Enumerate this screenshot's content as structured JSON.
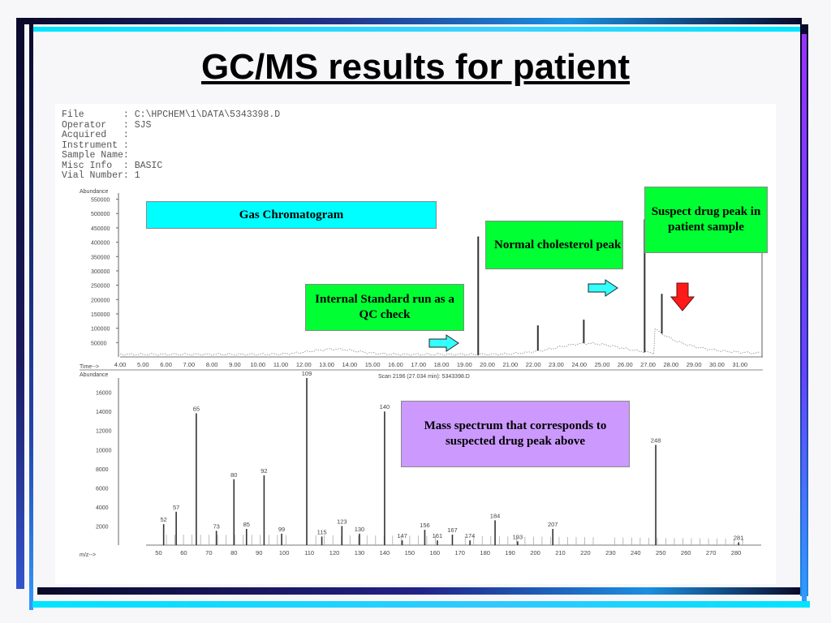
{
  "slide": {
    "title": "GC/MS results for patient"
  },
  "header": {
    "rows": [
      {
        "key": "File",
        "value": ": C:\\HPCHEM\\1\\DATA\\5343398.D"
      },
      {
        "key": "Operator",
        "value": ": SJS"
      },
      {
        "key": "Acquired",
        "value": ":"
      },
      {
        "key": "Instrument",
        "value": ":"
      },
      {
        "key": "Sample Name",
        "value": ":"
      },
      {
        "key": "Misc Info",
        "value": ": BASIC"
      },
      {
        "key": "Vial Number",
        "value": ": 1"
      }
    ]
  },
  "callouts": {
    "gas_chromatogram": "Gas Chromatogram",
    "internal_standard": "Internal Standard run as a QC check",
    "cholesterol": "Normal cholesterol peak",
    "suspect_drug": "Suspect drug peak in patient sample",
    "mass_spectrum": "Mass spectrum that corresponds to suspected drug peak above"
  },
  "colors": {
    "cyan": "#00ffff",
    "green": "#00ff33",
    "lavender": "#cc99ff",
    "arrow_cyan": "#33ffff",
    "arrow_red": "#ff1a1a"
  },
  "chart_data": [
    {
      "type": "line",
      "ylabel": "Abundance",
      "xlabel": "Time-->",
      "y_ticks": [
        "550000",
        "500000",
        "450000",
        "400000",
        "350000",
        "300000",
        "250000",
        "200000",
        "150000",
        "100000",
        "50000"
      ],
      "x_ticks": [
        "4.00",
        "5.00",
        "6.00",
        "7.00",
        "8.00",
        "9.00",
        "10.00",
        "11.00",
        "12.00",
        "13.00",
        "14.00",
        "15.00",
        "16.00",
        "17.00",
        "18.00",
        "19.00",
        "20.00",
        "21.00",
        "22.00",
        "23.00",
        "24.00",
        "25.00",
        "26.00",
        "27.00",
        "28.00",
        "29.00",
        "30.00",
        "31.00"
      ],
      "xlim": [
        4,
        32
      ],
      "ylim": [
        0,
        560000
      ],
      "peaks": [
        {
          "x": 19.6,
          "y": 420000
        },
        {
          "x": 22.2,
          "y": 110000
        },
        {
          "x": 24.2,
          "y": 130000
        },
        {
          "x": 26.85,
          "y": 480000
        },
        {
          "x": 27.6,
          "y": 220000
        }
      ]
    },
    {
      "type": "bar",
      "ylabel": "Abundance",
      "xlabel": "m/z-->",
      "subtitle": "Scan 2196 (27.034 min): 5343398.D",
      "y_ticks": [
        "16000",
        "14000",
        "12000",
        "10000",
        "8000",
        "6000",
        "4000",
        "2000"
      ],
      "x_ticks": [
        "50",
        "60",
        "70",
        "80",
        "90",
        "100",
        "110",
        "120",
        "130",
        "140",
        "150",
        "160",
        "170",
        "180",
        "190",
        "200",
        "210",
        "220",
        "230",
        "240",
        "250",
        "260",
        "270",
        "280"
      ],
      "xlim": [
        45,
        290
      ],
      "ylim": [
        0,
        17500
      ],
      "peaks": [
        {
          "mz": 52,
          "value": 2200,
          "label": "52"
        },
        {
          "mz": 57,
          "value": 3500,
          "label": "57"
        },
        {
          "mz": 65,
          "value": 13800,
          "label": "65"
        },
        {
          "mz": 73,
          "value": 1500,
          "label": "73"
        },
        {
          "mz": 80,
          "value": 6900,
          "label": "80"
        },
        {
          "mz": 85,
          "value": 1700,
          "label": "85"
        },
        {
          "mz": 92,
          "value": 7300,
          "label": "92"
        },
        {
          "mz": 99,
          "value": 1200,
          "label": "99"
        },
        {
          "mz": 109,
          "value": 17500,
          "label": "109"
        },
        {
          "mz": 115,
          "value": 900,
          "label": "115"
        },
        {
          "mz": 123,
          "value": 2000,
          "label": "123"
        },
        {
          "mz": 130,
          "value": 1200,
          "label": "130"
        },
        {
          "mz": 140,
          "value": 14000,
          "label": "140"
        },
        {
          "mz": 147,
          "value": 500,
          "label": "147"
        },
        {
          "mz": 156,
          "value": 1600,
          "label": "156"
        },
        {
          "mz": 161,
          "value": 500,
          "label": "161"
        },
        {
          "mz": 167,
          "value": 1100,
          "label": "167"
        },
        {
          "mz": 174,
          "value": 500,
          "label": "174"
        },
        {
          "mz": 184,
          "value": 2600,
          "label": "184"
        },
        {
          "mz": 193,
          "value": 400,
          "label": "193"
        },
        {
          "mz": 207,
          "value": 1700,
          "label": "207"
        },
        {
          "mz": 248,
          "value": 10500,
          "label": "248"
        },
        {
          "mz": 281,
          "value": 300,
          "label": "281"
        }
      ]
    }
  ]
}
